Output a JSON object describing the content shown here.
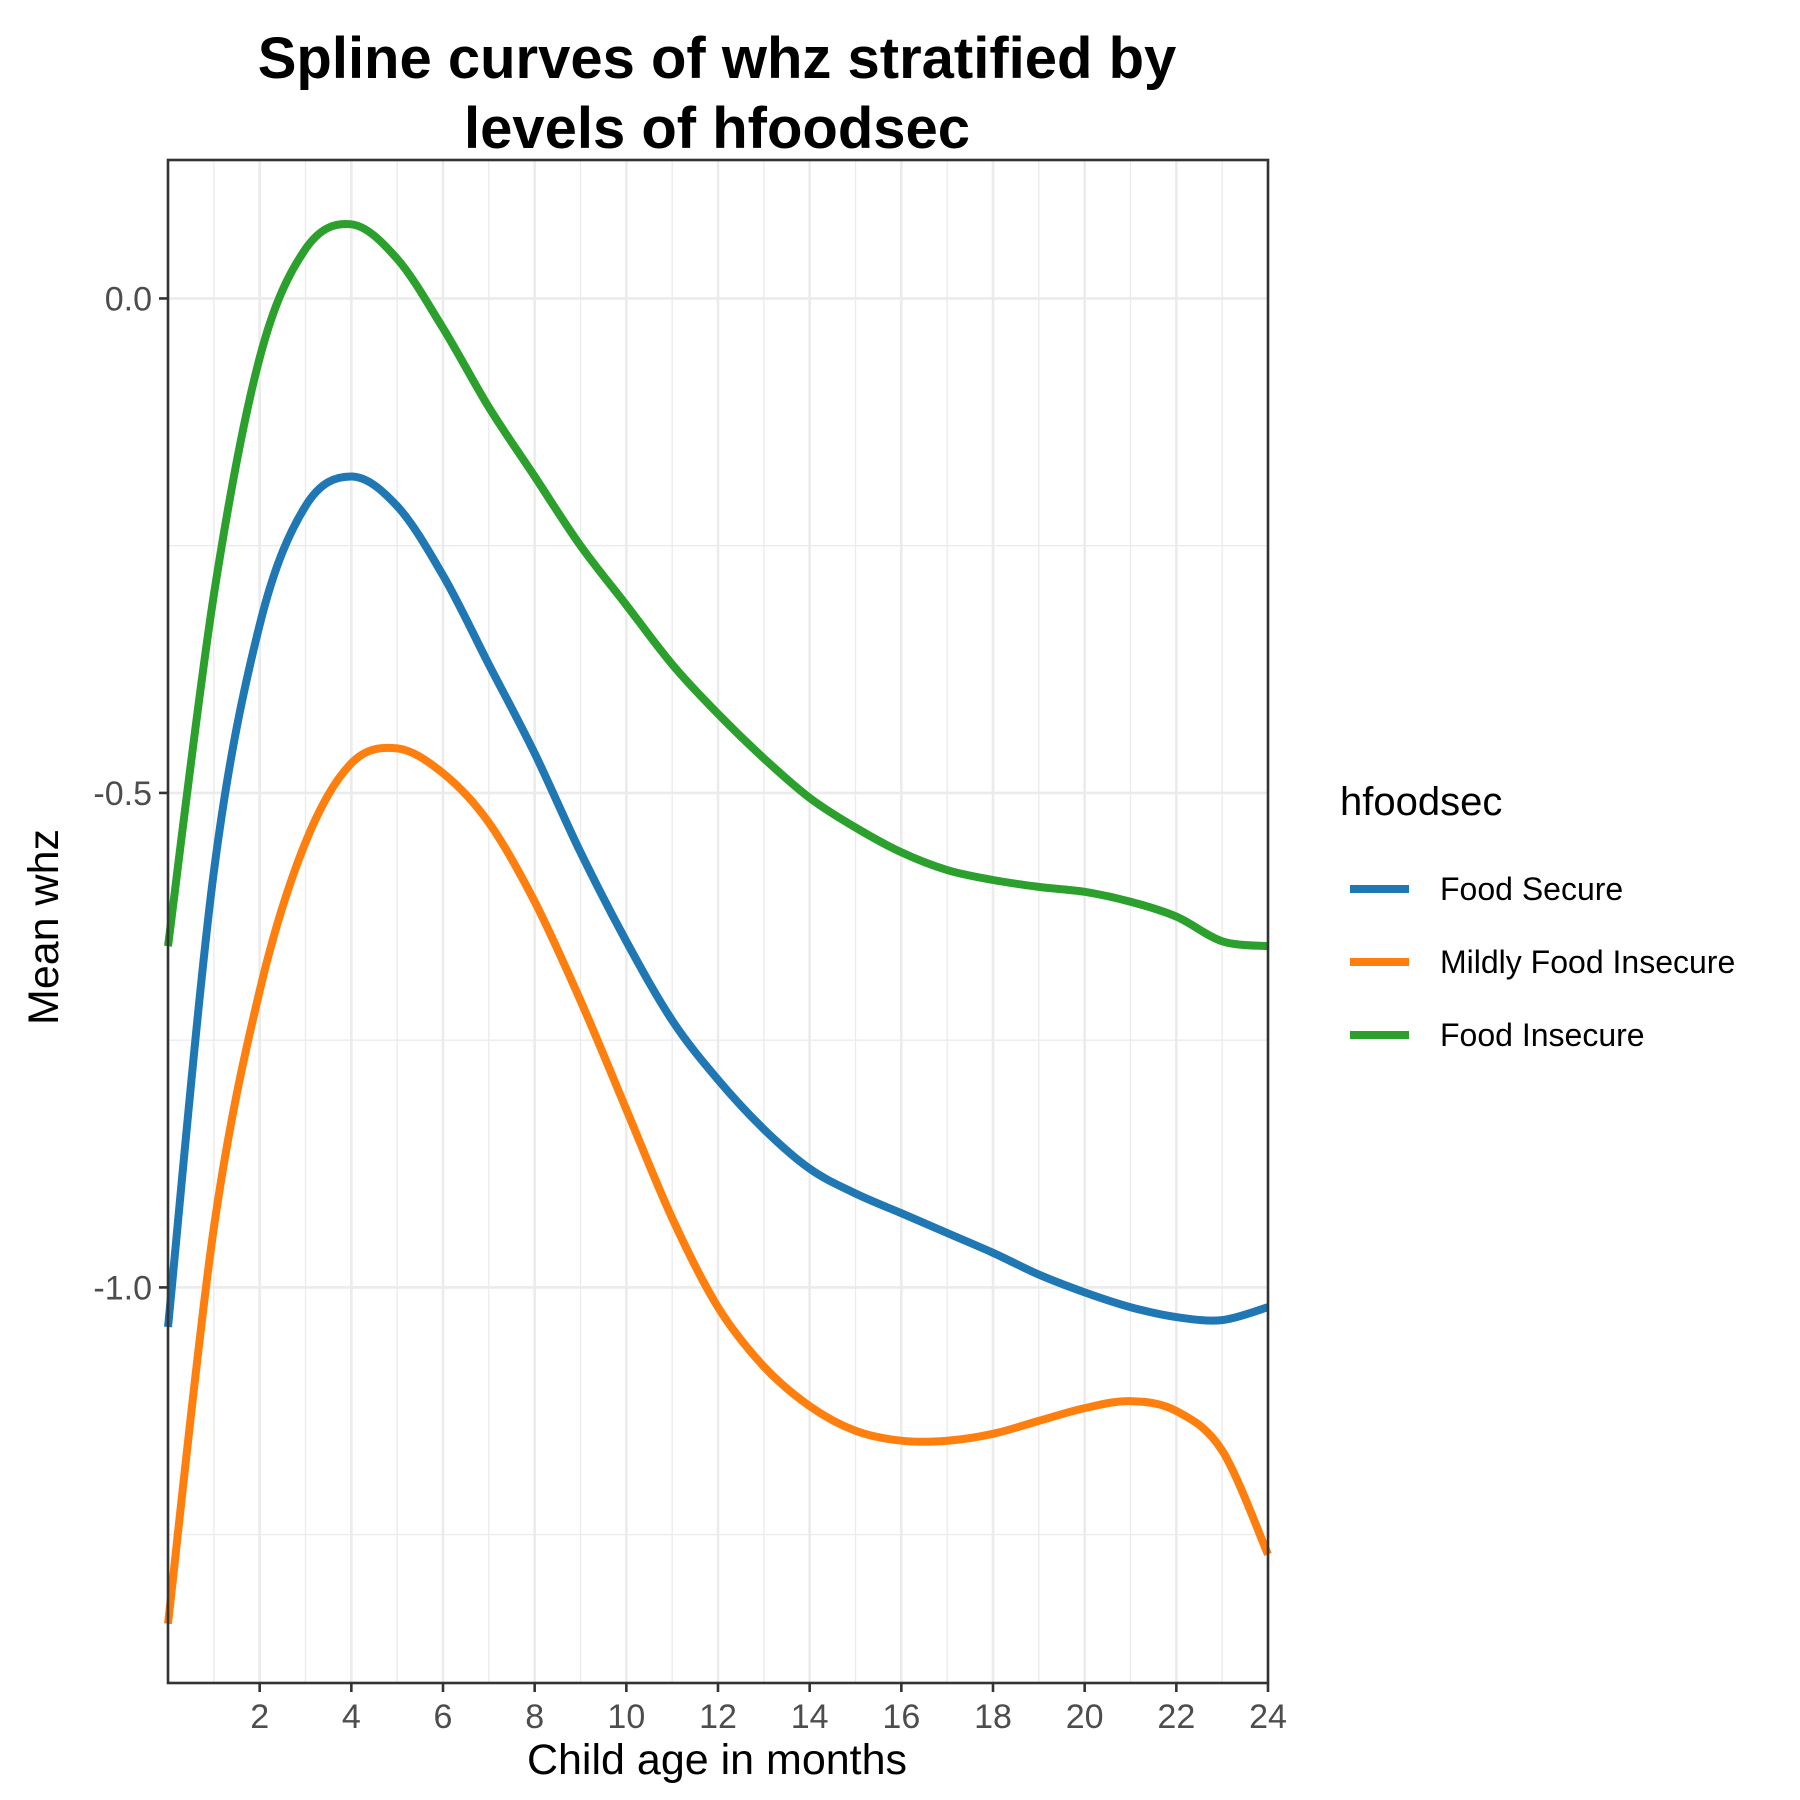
{
  "chart_data": {
    "type": "line",
    "title_lines": [
      "Spline curves of whz stratified by",
      "levels of hfoodsec"
    ],
    "xlabel": "Child age in months",
    "ylabel": "Mean whz",
    "xlim": [
      0,
      24
    ],
    "ylim": [
      -1.4,
      0.14
    ],
    "x_ticks": [
      2,
      4,
      6,
      8,
      10,
      12,
      14,
      16,
      18,
      20,
      22,
      24
    ],
    "y_ticks": [
      0.0,
      -0.5,
      -1.0
    ],
    "y_tick_labels": [
      "0.0",
      "-0.5",
      "-1.0"
    ],
    "grid": true,
    "legend": {
      "title": "hfoodsec",
      "position": "right"
    },
    "x": [
      0,
      1,
      2,
      3,
      4,
      5,
      6,
      7,
      8,
      9,
      10,
      11,
      12,
      13,
      14,
      15,
      16,
      17,
      18,
      19,
      20,
      21,
      22,
      23,
      24
    ],
    "series": [
      {
        "name": "Food Secure",
        "color": "#1f77b4",
        "values": [
          -1.04,
          -0.58,
          -0.33,
          -0.21,
          -0.18,
          -0.21,
          -0.28,
          -0.37,
          -0.46,
          -0.56,
          -0.65,
          -0.73,
          -0.79,
          -0.84,
          -0.88,
          -0.905,
          -0.925,
          -0.945,
          -0.965,
          -0.987,
          -1.005,
          -1.02,
          -1.03,
          -1.033,
          -1.02
        ]
      },
      {
        "name": "Mildly Food Insecure",
        "color": "#ff7f0e",
        "values": [
          -1.34,
          -0.94,
          -0.7,
          -0.55,
          -0.47,
          -0.455,
          -0.48,
          -0.53,
          -0.61,
          -0.71,
          -0.82,
          -0.93,
          -1.02,
          -1.08,
          -1.12,
          -1.145,
          -1.155,
          -1.155,
          -1.148,
          -1.135,
          -1.122,
          -1.115,
          -1.125,
          -1.165,
          -1.27
        ]
      },
      {
        "name": "Food Insecure",
        "color": "#2ca02c",
        "values": [
          -0.655,
          -0.3,
          -0.06,
          0.05,
          0.075,
          0.04,
          -0.03,
          -0.11,
          -0.18,
          -0.25,
          -0.31,
          -0.37,
          -0.42,
          -0.465,
          -0.505,
          -0.535,
          -0.56,
          -0.578,
          -0.588,
          -0.595,
          -0.6,
          -0.61,
          -0.625,
          -0.65,
          -0.655
        ]
      }
    ]
  }
}
